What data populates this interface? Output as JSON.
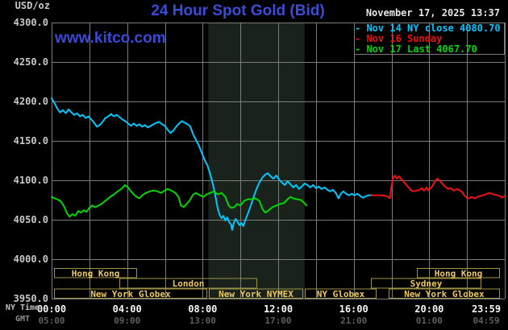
{
  "header": {
    "unit_label": "USD/oz",
    "datetime": "November 17, 2025 13:37",
    "watermark": "www.kitco.com",
    "legend_rows": [
      {
        "text": "- Nov 14 NY close 4080.70",
        "color": "#00c8ff"
      },
      {
        "text": "- Nov 16 Sunday",
        "color": "#ee1111"
      },
      {
        "text": "- Nov 17 Last 4067.70",
        "color": "#00d800"
      }
    ]
  },
  "colors": {
    "background": "#000000",
    "grid": "#7c7c7c",
    "nymex_shade": "#19221b",
    "session_border": "#a09245",
    "session_text": "#eeca5e",
    "y_tick_text": "#c8c8c8",
    "ny_time_text": "#f5f5f5",
    "gmt_time_text": "#5f5f5f",
    "title_blue": "#3b4cd8"
  },
  "chart_data": {
    "type": "line",
    "title": "24 Hour Spot Gold (Bid)",
    "ylabel": "USD/oz",
    "ylim": [
      3950,
      4300
    ],
    "xlim_hours": [
      0,
      24
    ],
    "grid": true,
    "legend_position": "top-right",
    "y_ticks": [
      4300,
      4250,
      4200,
      4150,
      4100,
      4050,
      4000,
      3950
    ],
    "y_tick_labels": [
      "4300.0",
      "4250.0",
      "4200.0",
      "4150.0",
      "4100.0",
      "4050.0",
      "4000.0",
      "3950.0"
    ],
    "x_axis": {
      "row1_label": "NY Time",
      "row2_label": "GMT",
      "tick_hours": [
        0,
        4,
        8,
        12,
        16,
        20,
        24
      ],
      "ny_time_labels": [
        "00:00",
        "04:00",
        "08:00",
        "12:00",
        "16:00",
        "20:00",
        "23:59"
      ],
      "gmt_labels": [
        "05:00",
        "09:00",
        "13:00",
        "17:00",
        "21:00",
        "01:00",
        "04:59"
      ]
    },
    "shaded_band_hours": [
      8.3,
      13.4
    ],
    "series": [
      {
        "name": "Nov 14 NY close 4080.70",
        "color": "#00c8ff",
        "points": [
          [
            0,
            4204
          ],
          [
            0.15,
            4198
          ],
          [
            0.3,
            4191
          ],
          [
            0.45,
            4186
          ],
          [
            0.6,
            4189
          ],
          [
            0.75,
            4185
          ],
          [
            0.9,
            4190
          ],
          [
            1.05,
            4186
          ],
          [
            1.2,
            4183
          ],
          [
            1.35,
            4185
          ],
          [
            1.5,
            4181
          ],
          [
            1.65,
            4183
          ],
          [
            1.8,
            4179
          ],
          [
            1.95,
            4181
          ],
          [
            2.1,
            4177
          ],
          [
            2.25,
            4173
          ],
          [
            2.4,
            4168
          ],
          [
            2.55,
            4170
          ],
          [
            2.7,
            4174
          ],
          [
            2.85,
            4179
          ],
          [
            3.0,
            4181
          ],
          [
            3.15,
            4184
          ],
          [
            3.3,
            4181
          ],
          [
            3.45,
            4183
          ],
          [
            3.6,
            4180
          ],
          [
            3.75,
            4177
          ],
          [
            3.9,
            4175
          ],
          [
            4.05,
            4172
          ],
          [
            4.2,
            4169
          ],
          [
            4.35,
            4172
          ],
          [
            4.5,
            4169
          ],
          [
            4.65,
            4171
          ],
          [
            4.8,
            4168
          ],
          [
            4.95,
            4170
          ],
          [
            5.1,
            4167
          ],
          [
            5.25,
            4169
          ],
          [
            5.4,
            4171
          ],
          [
            5.55,
            4173
          ],
          [
            5.7,
            4174
          ],
          [
            5.85,
            4171
          ],
          [
            6.0,
            4169
          ],
          [
            6.15,
            4164
          ],
          [
            6.3,
            4160
          ],
          [
            6.45,
            4163
          ],
          [
            6.6,
            4168
          ],
          [
            6.75,
            4172
          ],
          [
            6.9,
            4175
          ],
          [
            7.05,
            4173
          ],
          [
            7.2,
            4171
          ],
          [
            7.35,
            4168
          ],
          [
            7.5,
            4158
          ],
          [
            7.65,
            4151
          ],
          [
            7.8,
            4144
          ],
          [
            7.95,
            4135
          ],
          [
            8.1,
            4126
          ],
          [
            8.25,
            4119
          ],
          [
            8.4,
            4108
          ],
          [
            8.5,
            4099
          ],
          [
            8.6,
            4089
          ],
          [
            8.7,
            4077
          ],
          [
            8.8,
            4064
          ],
          [
            8.9,
            4056
          ],
          [
            9.0,
            4052
          ],
          [
            9.1,
            4055
          ],
          [
            9.2,
            4049
          ],
          [
            9.3,
            4053
          ],
          [
            9.4,
            4047
          ],
          [
            9.5,
            4044
          ],
          [
            9.56,
            4037
          ],
          [
            9.65,
            4046
          ],
          [
            9.75,
            4051
          ],
          [
            9.85,
            4047
          ],
          [
            9.95,
            4043
          ],
          [
            10.05,
            4046
          ],
          [
            10.15,
            4042
          ],
          [
            10.25,
            4049
          ],
          [
            10.4,
            4058
          ],
          [
            10.55,
            4068
          ],
          [
            10.7,
            4079
          ],
          [
            10.85,
            4089
          ],
          [
            11.0,
            4097
          ],
          [
            11.15,
            4103
          ],
          [
            11.3,
            4107
          ],
          [
            11.45,
            4109
          ],
          [
            11.6,
            4105
          ],
          [
            11.75,
            4102
          ],
          [
            11.9,
            4106
          ],
          [
            12.05,
            4101
          ],
          [
            12.2,
            4097
          ],
          [
            12.35,
            4094
          ],
          [
            12.5,
            4099
          ],
          [
            12.65,
            4095
          ],
          [
            12.8,
            4091
          ],
          [
            12.95,
            4094
          ],
          [
            13.1,
            4089
          ],
          [
            13.25,
            4092
          ],
          [
            13.4,
            4096
          ],
          [
            13.55,
            4094
          ],
          [
            13.7,
            4091
          ],
          [
            13.85,
            4094
          ],
          [
            14.0,
            4090
          ],
          [
            14.15,
            4092
          ],
          [
            14.3,
            4089
          ],
          [
            14.45,
            4091
          ],
          [
            14.6,
            4088
          ],
          [
            14.75,
            4086
          ],
          [
            14.9,
            4088
          ],
          [
            15.05,
            4084
          ],
          [
            15.2,
            4077
          ],
          [
            15.32,
            4083
          ],
          [
            15.45,
            4086
          ],
          [
            15.6,
            4083
          ],
          [
            15.75,
            4081
          ],
          [
            15.9,
            4083
          ],
          [
            16.05,
            4081
          ],
          [
            16.2,
            4083
          ],
          [
            16.35,
            4080
          ],
          [
            16.5,
            4078
          ],
          [
            16.65,
            4080
          ],
          [
            16.8,
            4081
          ],
          [
            17.0,
            4081
          ]
        ]
      },
      {
        "name": "Nov 16 Sunday",
        "color": "#ee1111",
        "points": [
          [
            16.95,
            4081
          ],
          [
            17.2,
            4081
          ],
          [
            17.5,
            4081
          ],
          [
            17.75,
            4080
          ],
          [
            17.92,
            4077
          ],
          [
            18.0,
            4092
          ],
          [
            18.08,
            4103
          ],
          [
            18.18,
            4106
          ],
          [
            18.28,
            4102
          ],
          [
            18.38,
            4105
          ],
          [
            18.5,
            4102
          ],
          [
            18.62,
            4099
          ],
          [
            18.75,
            4095
          ],
          [
            18.9,
            4091
          ],
          [
            19.05,
            4087
          ],
          [
            19.2,
            4086
          ],
          [
            19.35,
            4087
          ],
          [
            19.5,
            4088
          ],
          [
            19.62,
            4090
          ],
          [
            19.72,
            4087
          ],
          [
            19.85,
            4091
          ],
          [
            19.95,
            4087
          ],
          [
            20.08,
            4090
          ],
          [
            20.2,
            4094
          ],
          [
            20.32,
            4099
          ],
          [
            20.42,
            4102
          ],
          [
            20.52,
            4100
          ],
          [
            20.65,
            4097
          ],
          [
            20.78,
            4093
          ],
          [
            20.9,
            4091
          ],
          [
            21.0,
            4089
          ],
          [
            21.12,
            4090
          ],
          [
            21.3,
            4087
          ],
          [
            21.5,
            4089
          ],
          [
            21.62,
            4087
          ],
          [
            21.75,
            4085
          ],
          [
            21.85,
            4081
          ],
          [
            21.98,
            4078
          ],
          [
            22.1,
            4077
          ],
          [
            22.25,
            4079
          ],
          [
            22.4,
            4077
          ],
          [
            22.55,
            4079
          ],
          [
            22.7,
            4080
          ],
          [
            22.85,
            4081
          ],
          [
            23.0,
            4082
          ],
          [
            23.15,
            4084
          ],
          [
            23.3,
            4083
          ],
          [
            23.45,
            4082
          ],
          [
            23.6,
            4081
          ],
          [
            23.75,
            4080
          ],
          [
            23.88,
            4078
          ],
          [
            24.0,
            4080
          ]
        ]
      },
      {
        "name": "Nov 17 Last 4067.70",
        "color": "#00d800",
        "points": [
          [
            0,
            4079
          ],
          [
            0.15,
            4077
          ],
          [
            0.3,
            4076
          ],
          [
            0.5,
            4073
          ],
          [
            0.68,
            4066
          ],
          [
            0.82,
            4058
          ],
          [
            0.95,
            4054
          ],
          [
            1.1,
            4057
          ],
          [
            1.25,
            4055
          ],
          [
            1.4,
            4061
          ],
          [
            1.55,
            4059
          ],
          [
            1.7,
            4062
          ],
          [
            1.85,
            4060
          ],
          [
            2.0,
            4065
          ],
          [
            2.15,
            4068
          ],
          [
            2.3,
            4066
          ],
          [
            2.5,
            4068
          ],
          [
            2.7,
            4071
          ],
          [
            2.9,
            4075
          ],
          [
            3.1,
            4079
          ],
          [
            3.3,
            4082
          ],
          [
            3.5,
            4086
          ],
          [
            3.7,
            4089
          ],
          [
            3.88,
            4094
          ],
          [
            4.05,
            4091
          ],
          [
            4.2,
            4086
          ],
          [
            4.35,
            4082
          ],
          [
            4.5,
            4079
          ],
          [
            4.65,
            4077
          ],
          [
            4.8,
            4081
          ],
          [
            5.0,
            4084
          ],
          [
            5.2,
            4086
          ],
          [
            5.4,
            4087
          ],
          [
            5.6,
            4086
          ],
          [
            5.8,
            4084
          ],
          [
            6.0,
            4087
          ],
          [
            6.15,
            4089
          ],
          [
            6.35,
            4087
          ],
          [
            6.55,
            4084
          ],
          [
            6.72,
            4079
          ],
          [
            6.85,
            4068
          ],
          [
            7.0,
            4066
          ],
          [
            7.15,
            4070
          ],
          [
            7.3,
            4074
          ],
          [
            7.5,
            4082
          ],
          [
            7.65,
            4084
          ],
          [
            7.85,
            4081
          ],
          [
            8.05,
            4079
          ],
          [
            8.2,
            4082
          ],
          [
            8.4,
            4084
          ],
          [
            8.6,
            4086
          ],
          [
            8.8,
            4082
          ],
          [
            9.0,
            4084
          ],
          [
            9.2,
            4079
          ],
          [
            9.38,
            4068
          ],
          [
            9.52,
            4065
          ],
          [
            9.68,
            4066
          ],
          [
            9.82,
            4070
          ],
          [
            10.0,
            4068
          ],
          [
            10.2,
            4074
          ],
          [
            10.4,
            4076
          ],
          [
            10.6,
            4076
          ],
          [
            10.8,
            4077
          ],
          [
            11.0,
            4074
          ],
          [
            11.18,
            4063
          ],
          [
            11.32,
            4059
          ],
          [
            11.5,
            4062
          ],
          [
            11.7,
            4066
          ],
          [
            11.9,
            4068
          ],
          [
            12.1,
            4070
          ],
          [
            12.3,
            4071
          ],
          [
            12.5,
            4076
          ],
          [
            12.65,
            4079
          ],
          [
            12.8,
            4077
          ],
          [
            13.0,
            4076
          ],
          [
            13.2,
            4075
          ],
          [
            13.35,
            4072
          ],
          [
            13.5,
            4068
          ]
        ]
      }
    ],
    "sessions": [
      {
        "row": 0,
        "label": "Hong Kong",
        "start_hour": 0.13,
        "end_hour": 4.53
      },
      {
        "row": 0,
        "label": "Hong Kong",
        "start_hour": 19.35,
        "end_hour": 23.74
      },
      {
        "row": 1,
        "label": "London",
        "start_hour": 3.59,
        "end_hour": 10.89
      },
      {
        "row": 1,
        "label": "Sydney",
        "start_hour": 16.91,
        "end_hour": 22.76
      },
      {
        "row": 2,
        "label": "New York Globex",
        "start_hour": 0.13,
        "end_hour": 8.24
      },
      {
        "row": 2,
        "label": "New York NYMEX",
        "start_hour": 8.33,
        "end_hour": 13.32
      },
      {
        "row": 2,
        "label": "NY Globex",
        "start_hour": 13.41,
        "end_hour": 17.21
      },
      {
        "row": 2,
        "label": "New York Globex",
        "start_hour": 17.85,
        "end_hour": 23.74
      }
    ]
  }
}
